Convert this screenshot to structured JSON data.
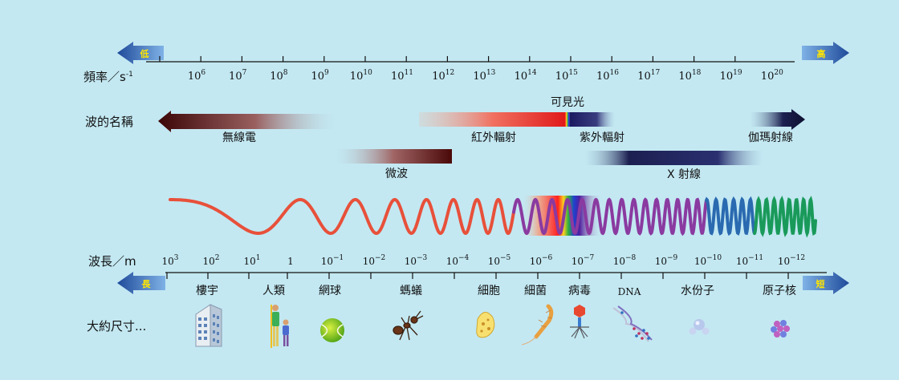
{
  "frequency": {
    "label": "頻率／s",
    "label_exp": "-1",
    "low": "低",
    "high": "高",
    "ticks": [
      {
        "base": "10",
        "exp": "6"
      },
      {
        "base": "10",
        "exp": "7"
      },
      {
        "base": "10",
        "exp": "8"
      },
      {
        "base": "10",
        "exp": "9"
      },
      {
        "base": "10",
        "exp": "10"
      },
      {
        "base": "10",
        "exp": "11"
      },
      {
        "base": "10",
        "exp": "12"
      },
      {
        "base": "10",
        "exp": "13"
      },
      {
        "base": "10",
        "exp": "14"
      },
      {
        "base": "10",
        "exp": "15"
      },
      {
        "base": "10",
        "exp": "16"
      },
      {
        "base": "10",
        "exp": "17"
      },
      {
        "base": "10",
        "exp": "18"
      },
      {
        "base": "10",
        "exp": "19"
      },
      {
        "base": "10",
        "exp": "20"
      }
    ]
  },
  "names": {
    "label": "波的名稱",
    "radio": "無線電",
    "microwave": "微波",
    "infrared": "紅外輻射",
    "visible": "可見光",
    "ultraviolet": "紫外輻射",
    "xray": "X 射線",
    "gamma": "伽瑪射線"
  },
  "wavelength": {
    "label": "波長／m",
    "long": "長",
    "short": "短",
    "ticks": [
      {
        "base": "10",
        "exp": "3"
      },
      {
        "base": "10",
        "exp": "2"
      },
      {
        "base": "10",
        "exp": "1"
      },
      {
        "base": "1",
        "exp": ""
      },
      {
        "base": "10",
        "exp": "−1"
      },
      {
        "base": "10",
        "exp": "−2"
      },
      {
        "base": "10",
        "exp": "−3"
      },
      {
        "base": "10",
        "exp": "−4"
      },
      {
        "base": "10",
        "exp": "−5"
      },
      {
        "base": "10",
        "exp": "−6"
      },
      {
        "base": "10",
        "exp": "−7"
      },
      {
        "base": "10",
        "exp": "−8"
      },
      {
        "base": "10",
        "exp": "−9"
      },
      {
        "base": "10",
        "exp": "−10"
      },
      {
        "base": "10",
        "exp": "−11"
      },
      {
        "base": "10",
        "exp": "−12"
      }
    ]
  },
  "size": {
    "label": "大約尺寸...",
    "items": [
      {
        "label": "樓宇",
        "icon": "building-icon"
      },
      {
        "label": "人類",
        "icon": "humans-icon"
      },
      {
        "label": "網球",
        "icon": "tennis-ball-icon"
      },
      {
        "label": "螞蟻",
        "icon": "ant-icon"
      },
      {
        "label": "細胞",
        "icon": "cell-icon"
      },
      {
        "label": "細菌",
        "icon": "bacterium-icon"
      },
      {
        "label": "病毒",
        "icon": "virus-icon"
      },
      {
        "label": "DNA",
        "icon": "dna-icon"
      },
      {
        "label": "水份子",
        "icon": "water-molecule-icon"
      },
      {
        "label": "原子核",
        "icon": "nucleus-icon"
      }
    ]
  },
  "colors": {
    "background": "#c3e8f2",
    "arrow_blue": "#2a5aa8",
    "arrow_text": "#ffe600",
    "radio": "#4a0c0c",
    "infrared": "#e02020",
    "ultraviolet": "#1c1f5a",
    "wave_red": "#e8503a",
    "wave_purple": "#8a3aa0",
    "wave_blue": "#2a6ab0",
    "wave_green": "#1a9a5a"
  }
}
